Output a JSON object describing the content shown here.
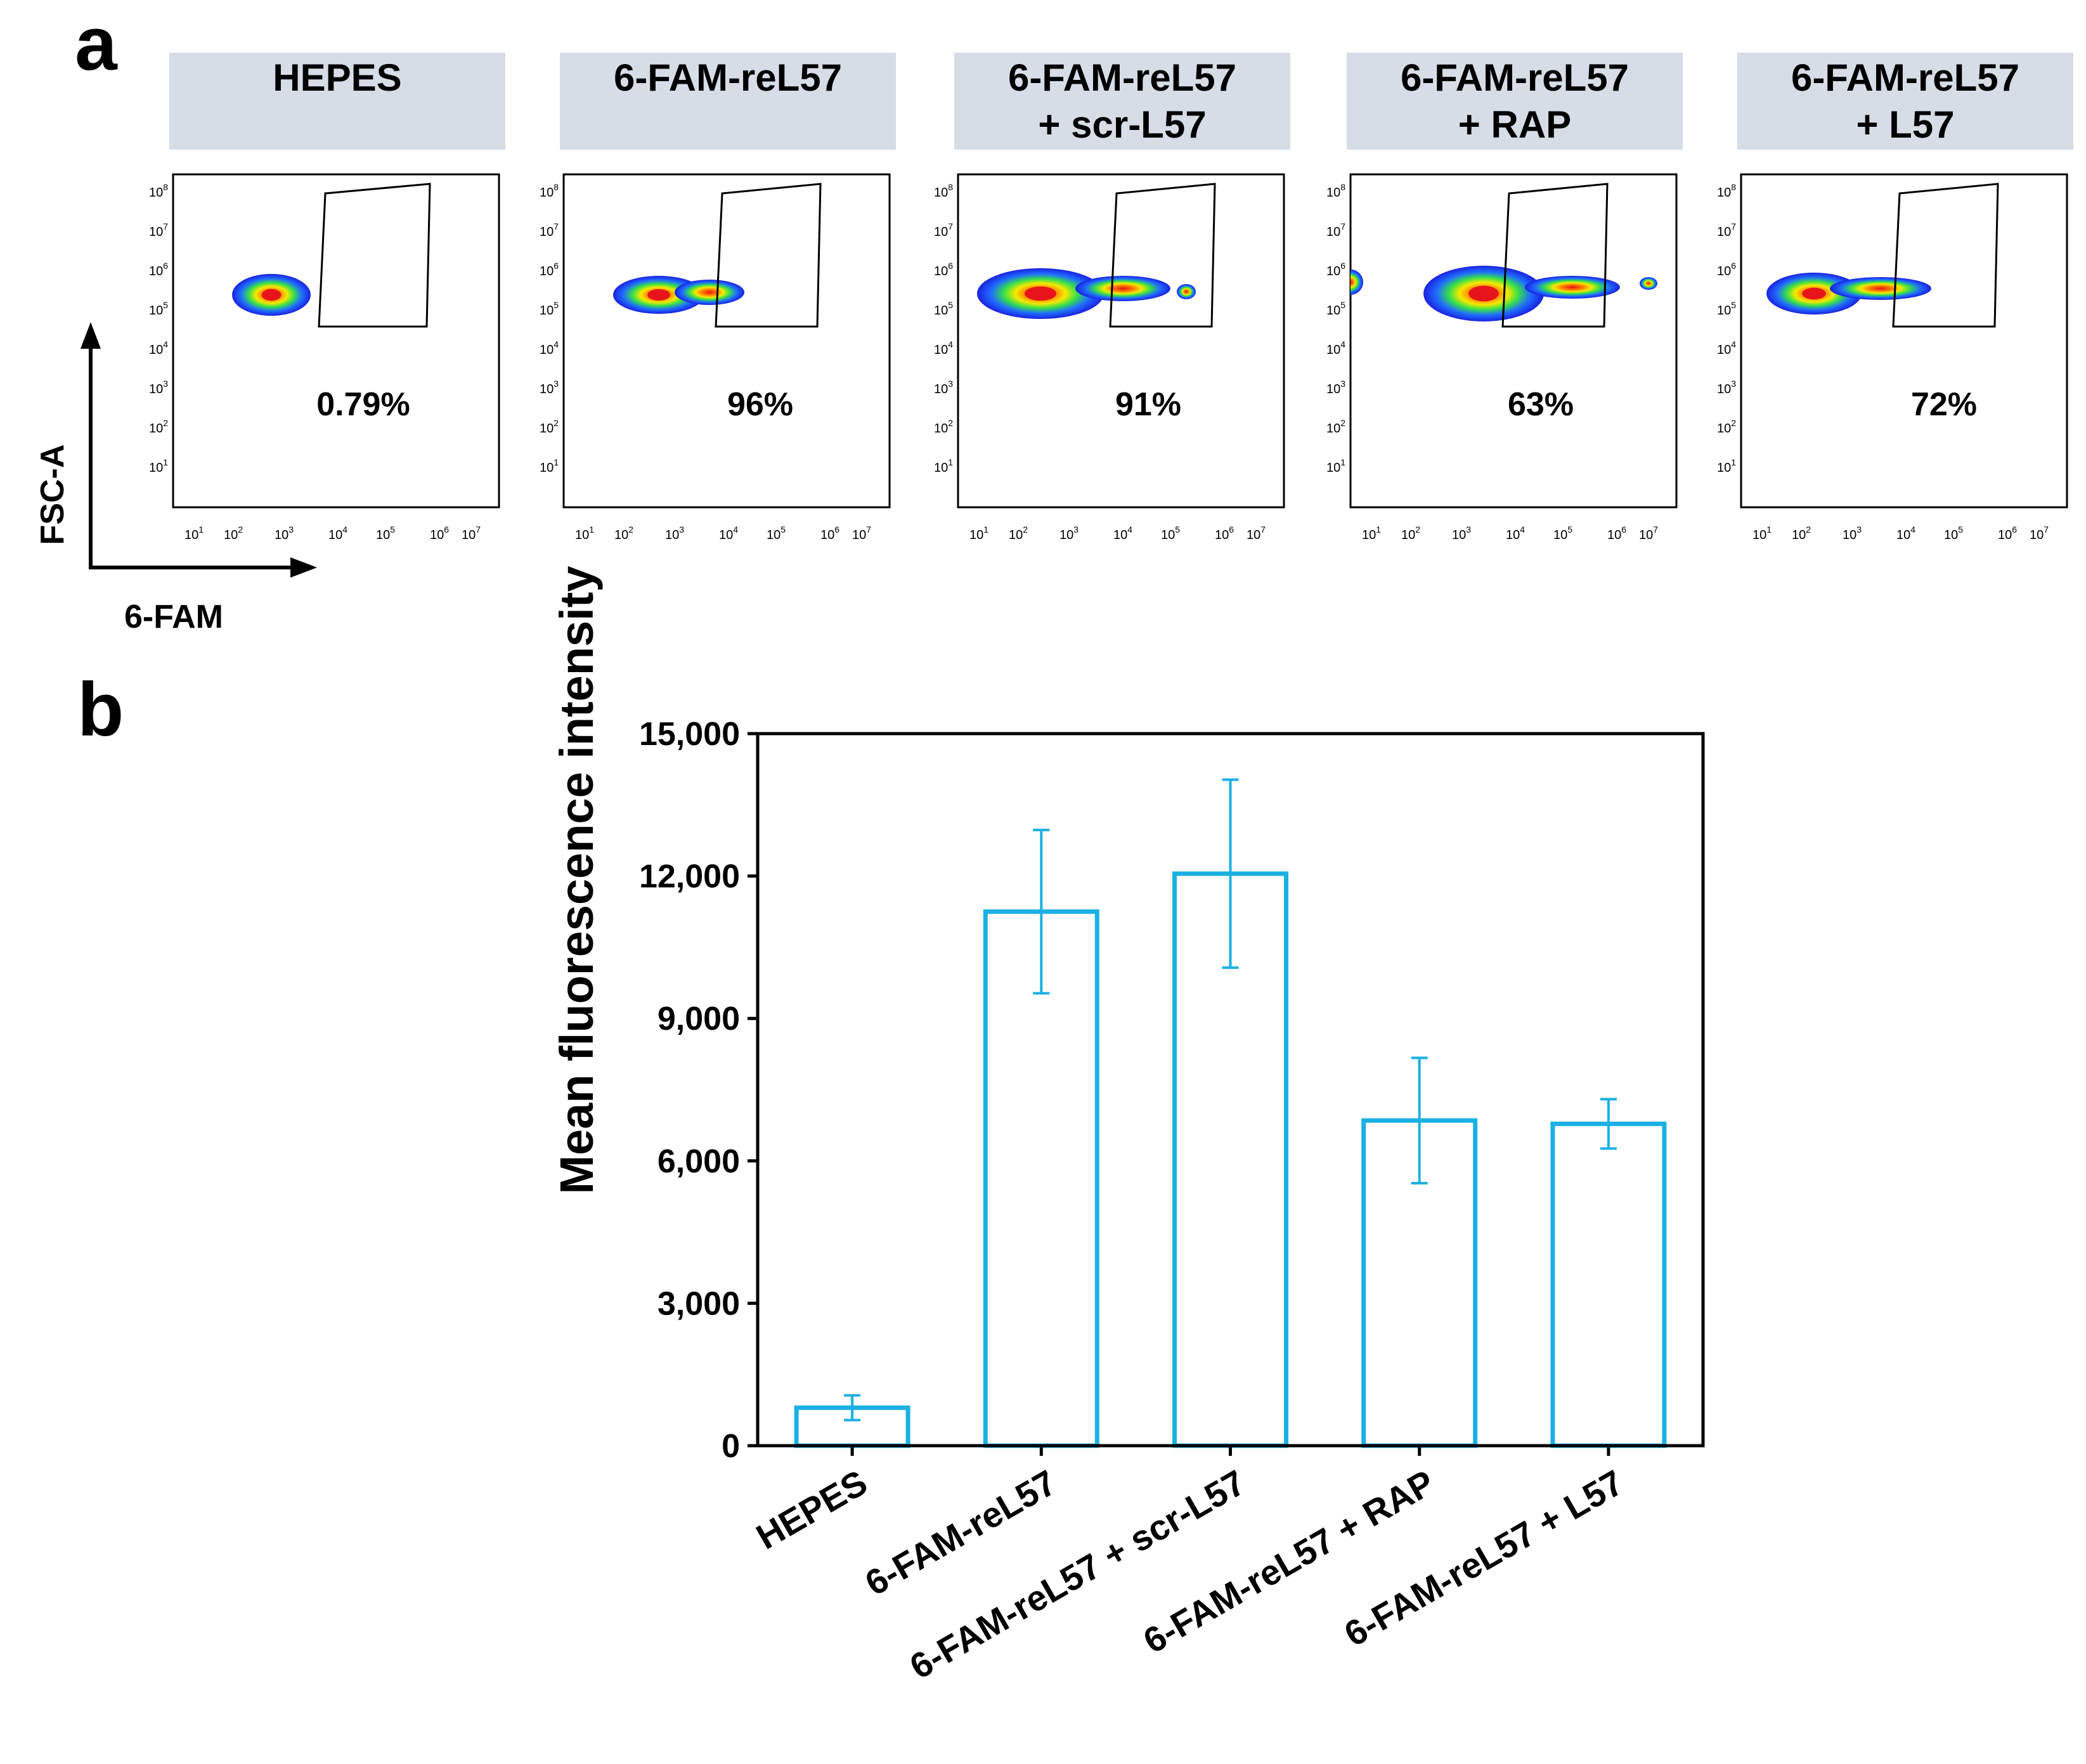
{
  "panel_a": {
    "letter": "a",
    "x_axis_label": "6-FAM",
    "y_axis_label": "FSC-A",
    "y_tick_exponents": [
      "8",
      "7",
      "6",
      "5",
      "4",
      "3",
      "2",
      "1"
    ],
    "x_tick_exponents": [
      "1",
      "2",
      "3",
      "4",
      "5",
      "6",
      "7"
    ],
    "tick_base": "10",
    "plots": [
      {
        "header": [
          "HEPES"
        ],
        "percent": "0.79%"
      },
      {
        "header": [
          "6-FAM-reL57"
        ],
        "percent": "96%"
      },
      {
        "header": [
          "6-FAM-reL57",
          "+ scr-L57"
        ],
        "percent": "91%"
      },
      {
        "header": [
          "6-FAM-reL57",
          "+ RAP"
        ],
        "percent": "63%"
      },
      {
        "header": [
          "6-FAM-reL57",
          "+ L57"
        ],
        "percent": "72%"
      }
    ]
  },
  "panel_b": {
    "letter": "b"
  },
  "colors": {
    "bar": "#1ab0e4",
    "header_bg": "#d6dde6",
    "axis": "#000000"
  },
  "chart_data": {
    "type": "bar",
    "title": "",
    "xlabel": "",
    "ylabel": "Mean fluorescence intensity",
    "categories": [
      "HEPES",
      "6-FAM-reL57",
      "6-FAM-reL57 + scr-L57",
      "6-FAM-reL57 + RAP",
      "6-FAM-reL57 + L57"
    ],
    "values": [
      800,
      11250,
      12050,
      6850,
      6780
    ],
    "errors": [
      260,
      1720,
      1980,
      1320,
      520
    ],
    "ylim": [
      0,
      15000
    ],
    "yticks": [
      0,
      3000,
      6000,
      9000,
      12000,
      15000
    ],
    "ytick_labels": [
      "0",
      "3,000",
      "6,000",
      "9,000",
      "12,000",
      "15,000"
    ]
  }
}
